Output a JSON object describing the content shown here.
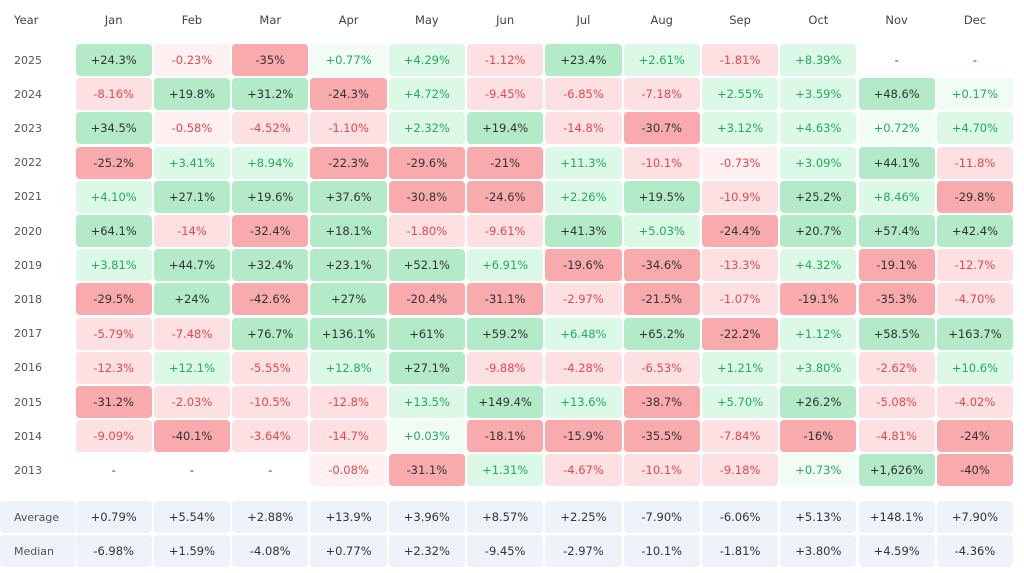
{
  "header": {
    "year_label": "Year",
    "months": [
      "Jan",
      "Feb",
      "Mar",
      "Apr",
      "May",
      "Jun",
      "Jul",
      "Aug",
      "Sep",
      "Oct",
      "Nov",
      "Dec"
    ]
  },
  "rows": [
    {
      "year": "2025",
      "cells": [
        "+24.3%",
        "-0.23%",
        "-35%",
        "+0.77%",
        "+4.29%",
        "-1.12%",
        "+23.4%",
        "+2.61%",
        "-1.81%",
        "+8.39%",
        "-",
        "-"
      ]
    },
    {
      "year": "2024",
      "cells": [
        "-8.16%",
        "+19.8%",
        "+31.2%",
        "-24.3%",
        "+4.72%",
        "-9.45%",
        "-6.85%",
        "-7.18%",
        "+2.55%",
        "+3.59%",
        "+48.6%",
        "+0.17%"
      ]
    },
    {
      "year": "2023",
      "cells": [
        "+34.5%",
        "-0.58%",
        "-4.52%",
        "-1.10%",
        "+2.32%",
        "+19.4%",
        "-14.8%",
        "-30.7%",
        "+3.12%",
        "+4.63%",
        "+0.72%",
        "+4.70%"
      ]
    },
    {
      "year": "2022",
      "cells": [
        "-25.2%",
        "+3.41%",
        "+8.94%",
        "-22.3%",
        "-29.6%",
        "-21%",
        "+11.3%",
        "-10.1%",
        "-0.73%",
        "+3.09%",
        "+44.1%",
        "-11.8%"
      ]
    },
    {
      "year": "2021",
      "cells": [
        "+4.10%",
        "+27.1%",
        "+19.6%",
        "+37.6%",
        "-30.8%",
        "-24.6%",
        "+2.26%",
        "+19.5%",
        "-10.9%",
        "+25.2%",
        "+8.46%",
        "-29.8%"
      ]
    },
    {
      "year": "2020",
      "cells": [
        "+64.1%",
        "-14%",
        "-32.4%",
        "+18.1%",
        "-1.80%",
        "-9.61%",
        "+41.3%",
        "+5.03%",
        "-24.4%",
        "+20.7%",
        "+57.4%",
        "+42.4%"
      ]
    },
    {
      "year": "2019",
      "cells": [
        "+3.81%",
        "+44.7%",
        "+32.4%",
        "+23.1%",
        "+52.1%",
        "+6.91%",
        "-19.6%",
        "-34.6%",
        "-13.3%",
        "+4.32%",
        "-19.1%",
        "-12.7%"
      ]
    },
    {
      "year": "2018",
      "cells": [
        "-29.5%",
        "+24%",
        "-42.6%",
        "+27%",
        "-20.4%",
        "-31.1%",
        "-2.97%",
        "-21.5%",
        "-1.07%",
        "-19.1%",
        "-35.3%",
        "-4.70%"
      ]
    },
    {
      "year": "2017",
      "cells": [
        "-5.79%",
        "-7.48%",
        "+76.7%",
        "+136.1%",
        "+61%",
        "+59.2%",
        "+6.48%",
        "+65.2%",
        "-22.2%",
        "+1.12%",
        "+58.5%",
        "+163.7%"
      ]
    },
    {
      "year": "2016",
      "cells": [
        "-12.3%",
        "+12.1%",
        "-5.55%",
        "+12.8%",
        "+27.1%",
        "-9.88%",
        "-4.28%",
        "-6.53%",
        "+1.21%",
        "+3.80%",
        "-2.62%",
        "+10.6%"
      ]
    },
    {
      "year": "2015",
      "cells": [
        "-31.2%",
        "-2.03%",
        "-10.5%",
        "-12.8%",
        "+13.5%",
        "+149.4%",
        "+13.6%",
        "-38.7%",
        "+5.70%",
        "+26.2%",
        "-5.08%",
        "-4.02%"
      ]
    },
    {
      "year": "2014",
      "cells": [
        "-9.09%",
        "-40.1%",
        "-3.64%",
        "-14.7%",
        "+0.03%",
        "-18.1%",
        "-15.9%",
        "-35.5%",
        "-7.84%",
        "-16%",
        "-4.81%",
        "-24%"
      ]
    },
    {
      "year": "2013",
      "cells": [
        "-",
        "-",
        "-",
        "-0.08%",
        "-31.1%",
        "+1.31%",
        "-4.67%",
        "-10.1%",
        "-9.18%",
        "+0.73%",
        "+1,626%",
        "-40%"
      ]
    }
  ],
  "summary": [
    {
      "label": "Average",
      "cells": [
        "+0.79%",
        "+5.54%",
        "+2.88%",
        "+13.9%",
        "+3.96%",
        "+8.57%",
        "+2.25%",
        "-7.90%",
        "-6.06%",
        "+5.13%",
        "+148.1%",
        "+7.90%"
      ]
    },
    {
      "label": "Median",
      "cells": [
        "-6.98%",
        "+1.59%",
        "-4.08%",
        "+0.77%",
        "+2.32%",
        "-9.45%",
        "-2.97%",
        "-10.1%",
        "-1.81%",
        "+3.80%",
        "+4.59%",
        "-4.36%"
      ]
    }
  ]
}
